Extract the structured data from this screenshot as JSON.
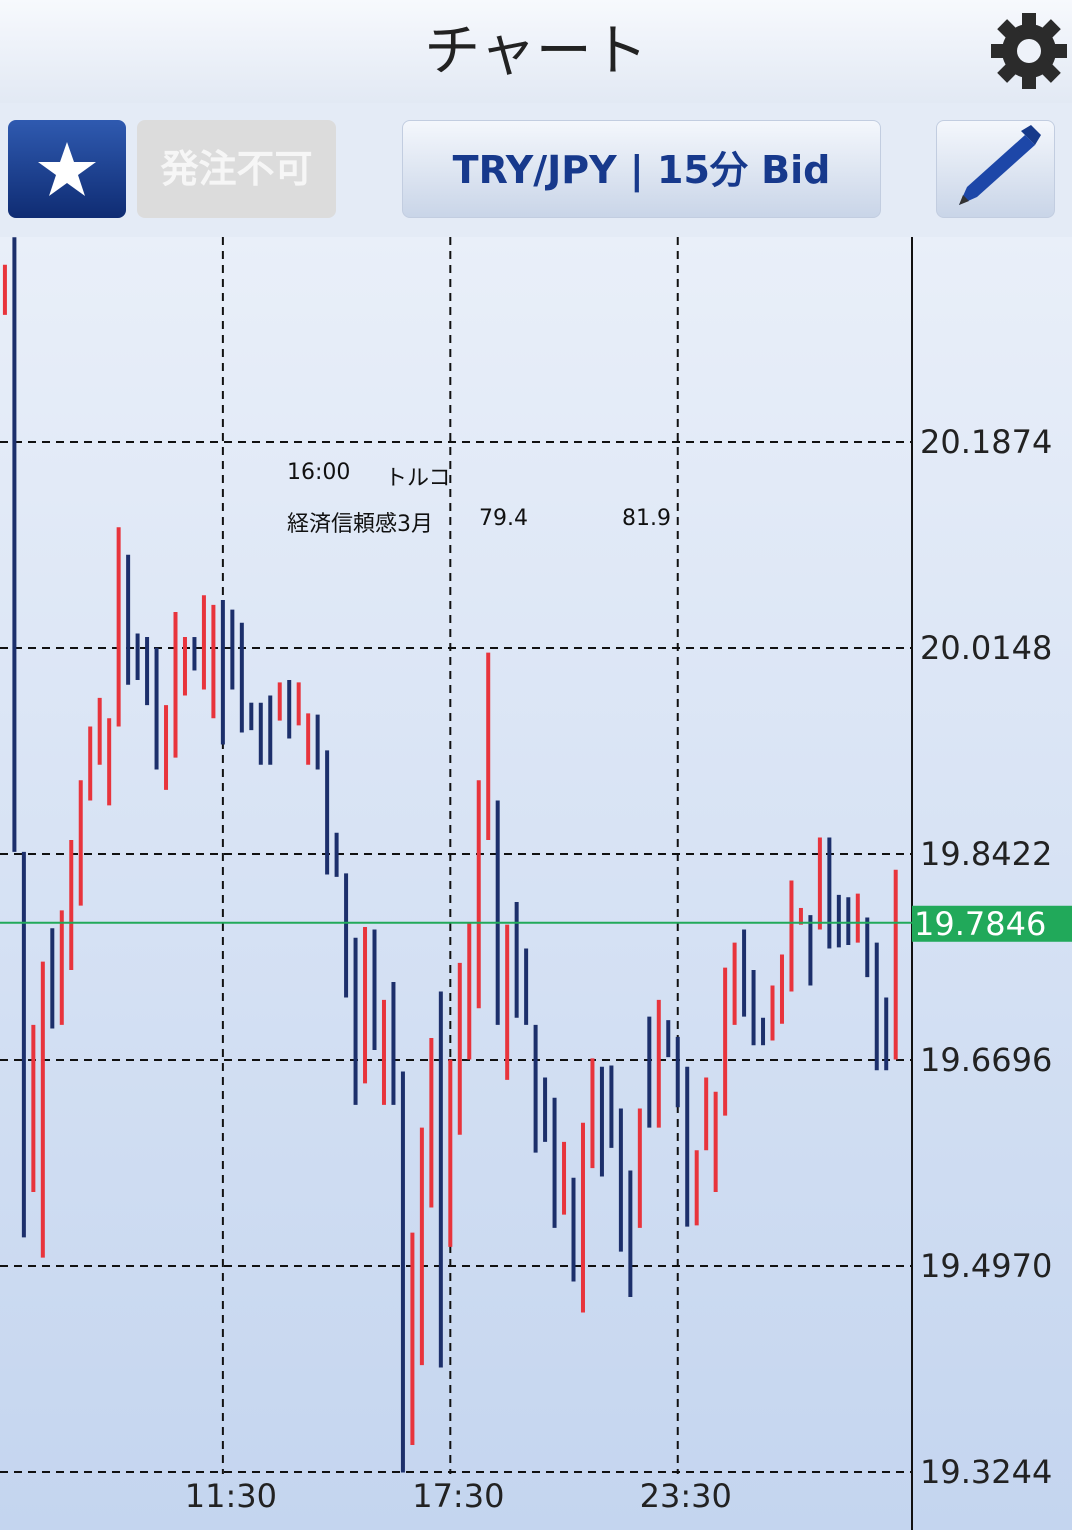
{
  "header": {
    "title": "チャート"
  },
  "toolbar": {
    "order_button": "発注不可",
    "symbol_button": "TRY/JPY | 15分 Bid"
  },
  "annotation": {
    "time": "16:00",
    "country": "トルコ",
    "event": "経済信頼感3月",
    "previous": 79.4,
    "forecast": 81.9
  },
  "chart_data": {
    "type": "hlbar",
    "x": [
      5.75,
      6,
      6.25,
      6.5,
      6.75,
      7,
      7.25,
      7.5,
      7.75,
      8,
      8.25,
      8.5,
      8.75,
      9,
      9.25,
      9.5,
      9.75,
      10,
      10.25,
      10.5,
      10.75,
      11,
      11.25,
      11.5,
      11.75,
      12,
      12.25,
      12.5,
      12.75,
      13,
      13.25,
      13.5,
      13.75,
      14,
      14.25,
      14.5,
      14.75,
      15,
      15.25,
      15.5,
      15.75,
      16,
      16.25,
      16.5,
      16.75,
      17,
      17.25,
      17.5,
      17.75,
      18,
      18.25,
      18.5,
      18.75,
      19,
      19.25,
      19.5,
      19.75,
      20,
      20.25,
      20.5,
      20.75,
      21,
      21.25,
      21.5,
      21.75,
      22,
      22.25,
      22.5,
      22.75,
      23,
      23.25,
      23.5,
      23.75,
      24,
      24.25,
      24.5,
      24.75,
      25,
      25.25,
      25.5,
      25.75,
      26,
      26.25,
      26.5,
      26.75,
      27,
      27.25,
      27.5,
      27.75,
      28,
      28.25,
      28.5,
      28.75,
      29,
      29.25
    ],
    "high": [
      20.336,
      20.359,
      19.844,
      19.699,
      19.752,
      19.78,
      19.795,
      19.854,
      19.904,
      19.949,
      19.973,
      19.956,
      20.116,
      20.093,
      20.027,
      20.024,
      20.015,
      19.967,
      20.045,
      20.024,
      20.024,
      20.059,
      20.051,
      20.055,
      20.047,
      20.036,
      19.969,
      19.969,
      19.975,
      19.986,
      19.988,
      19.986,
      19.96,
      19.959,
      19.929,
      19.86,
      19.826,
      19.772,
      19.781,
      19.779,
      19.72,
      19.735,
      19.66,
      19.525,
      19.613,
      19.688,
      19.727,
      19.67,
      19.751,
      19.784,
      19.904,
      20.011,
      19.887,
      19.783,
      19.802,
      19.763,
      19.699,
      19.655,
      19.638,
      19.601,
      19.571,
      19.617,
      19.671,
      19.664,
      19.665,
      19.629,
      19.577,
      19.629,
      19.706,
      19.72,
      19.703,
      19.689,
      19.664,
      19.594,
      19.655,
      19.643,
      19.747,
      19.768,
      19.779,
      19.745,
      19.705,
      19.732,
      19.758,
      19.82,
      19.797,
      19.791,
      19.856,
      19.856,
      19.808,
      19.806,
      19.809,
      19.789,
      19.768,
      19.722,
      19.829
    ],
    "low": [
      20.294,
      19.844,
      19.521,
      19.559,
      19.504,
      19.696,
      19.699,
      19.745,
      19.799,
      19.887,
      19.917,
      19.883,
      19.949,
      19.984,
      19.988,
      19.967,
      19.913,
      19.896,
      19.923,
      19.975,
      19.996,
      19.98,
      19.956,
      19.934,
      19.98,
      19.944,
      19.946,
      19.917,
      19.917,
      19.954,
      19.939,
      19.95,
      19.917,
      19.913,
      19.825,
      19.823,
      19.722,
      19.632,
      19.65,
      19.678,
      19.632,
      19.632,
      19.324,
      19.347,
      19.414,
      19.546,
      19.412,
      19.513,
      19.607,
      19.67,
      19.713,
      19.854,
      19.699,
      19.653,
      19.705,
      19.699,
      19.592,
      19.601,
      19.529,
      19.54,
      19.484,
      19.458,
      19.579,
      19.572,
      19.596,
      19.509,
      19.471,
      19.529,
      19.613,
      19.613,
      19.672,
      19.63,
      19.53,
      19.531,
      19.594,
      19.559,
      19.623,
      19.699,
      19.706,
      19.682,
      19.682,
      19.686,
      19.7,
      19.727,
      19.783,
      19.732,
      19.779,
      19.763,
      19.764,
      19.766,
      19.768,
      19.739,
      19.661,
      19.661,
      19.67
    ],
    "colors": [
      "#e8343c",
      "#1c2f6b",
      "#1c2f6b",
      "#e8343c",
      "#e8343c",
      "#1c2f6b",
      "#e8343c",
      "#e8343c",
      "#e8343c",
      "#e8343c",
      "#e8343c",
      "#e8343c",
      "#e8343c",
      "#1c2f6b",
      "#1c2f6b",
      "#1c2f6b",
      "#1c2f6b",
      "#e8343c",
      "#e8343c",
      "#e8343c",
      "#1c2f6b",
      "#e8343c",
      "#e8343c",
      "#1c2f6b",
      "#1c2f6b",
      "#1c2f6b",
      "#1c2f6b",
      "#1c2f6b",
      "#1c2f6b",
      "#e8343c",
      "#1c2f6b",
      "#e8343c",
      "#e8343c",
      "#1c2f6b",
      "#1c2f6b",
      "#1c2f6b",
      "#1c2f6b",
      "#1c2f6b",
      "#e8343c",
      "#1c2f6b",
      "#e8343c",
      "#1c2f6b",
      "#1c2f6b",
      "#e8343c",
      "#e8343c",
      "#e8343c",
      "#1c2f6b",
      "#e8343c",
      "#e8343c",
      "#e8343c",
      "#e8343c",
      "#e8343c",
      "#1c2f6b",
      "#e8343c",
      "#1c2f6b",
      "#1c2f6b",
      "#1c2f6b",
      "#1c2f6b",
      "#1c2f6b",
      "#e8343c",
      "#1c2f6b",
      "#e8343c",
      "#e8343c",
      "#1c2f6b",
      "#1c2f6b",
      "#1c2f6b",
      "#1c2f6b",
      "#e8343c",
      "#1c2f6b",
      "#e8343c",
      "#1c2f6b",
      "#1c2f6b",
      "#1c2f6b",
      "#e8343c",
      "#e8343c",
      "#e8343c",
      "#e8343c",
      "#e8343c",
      "#1c2f6b",
      "#1c2f6b",
      "#1c2f6b",
      "#e8343c",
      "#e8343c",
      "#e8343c",
      "#e8343c",
      "#1c2f6b",
      "#e8343c",
      "#1c2f6b",
      "#1c2f6b",
      "#1c2f6b",
      "#e8343c",
      "#1c2f6b",
      "#1c2f6b",
      "#1c2f6b",
      "#e8343c"
    ],
    "xlim": [
      5.62,
      29.68
    ],
    "xticks": [
      {
        "value": 11.5,
        "label": "11:30"
      },
      {
        "value": 17.5,
        "label": "17:30"
      },
      {
        "value": 23.5,
        "label": "23:30"
      }
    ],
    "ylim": [
      19.2758,
      20.3592
    ],
    "yticks": [
      20.1874,
      20.0148,
      19.8422,
      19.6696,
      {
        "value": 19.497,
        "label": "19.4970"
      },
      19.3244
    ],
    "current_price": 19.7846,
    "current_price_color": "#21a95a",
    "grid": true
  }
}
